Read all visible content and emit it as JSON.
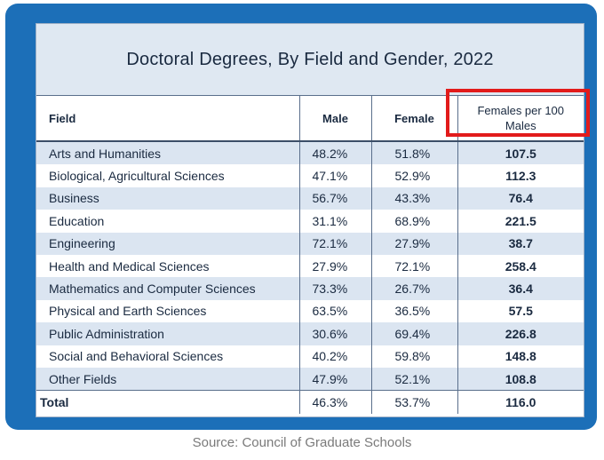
{
  "chart_data": {
    "type": "table",
    "title": "Doctoral Degrees, By Field and Gender, 2022",
    "columns": [
      "Field",
      "Male",
      "Female",
      "Females per 100 Males"
    ],
    "rows": [
      {
        "field": "Arts and Humanities",
        "male": "48.2%",
        "female": "51.8%",
        "ratio": "107.5"
      },
      {
        "field": "Biological, Agricultural Sciences",
        "male": "47.1%",
        "female": "52.9%",
        "ratio": "112.3"
      },
      {
        "field": "Business",
        "male": "56.7%",
        "female": "43.3%",
        "ratio": "76.4"
      },
      {
        "field": "Education",
        "male": "31.1%",
        "female": "68.9%",
        "ratio": "221.5"
      },
      {
        "field": "Engineering",
        "male": "72.1%",
        "female": "27.9%",
        "ratio": "38.7"
      },
      {
        "field": "Health and Medical Sciences",
        "male": "27.9%",
        "female": "72.1%",
        "ratio": "258.4"
      },
      {
        "field": "Mathematics and Computer Sciences",
        "male": "73.3%",
        "female": "26.7%",
        "ratio": "36.4"
      },
      {
        "field": "Physical and Earth Sciences",
        "male": "63.5%",
        "female": "36.5%",
        "ratio": "57.5"
      },
      {
        "field": "Public Administration",
        "male": "30.6%",
        "female": "69.4%",
        "ratio": "226.8"
      },
      {
        "field": "Social and Behavioral Sciences",
        "male": "40.2%",
        "female": "59.8%",
        "ratio": "148.8"
      },
      {
        "field": "Other Fields",
        "male": "47.9%",
        "female": "52.1%",
        "ratio": "108.8"
      }
    ],
    "total": {
      "field": "Total",
      "male": "46.3%",
      "female": "53.7%",
      "ratio": "116.0"
    },
    "source": "Source: Council of Graduate Schools"
  },
  "colors": {
    "frame": "#1c6fb8",
    "title_band": "#dbe5f1",
    "row_stripe": "#dbe5f1",
    "highlight": "#e21b1b"
  }
}
